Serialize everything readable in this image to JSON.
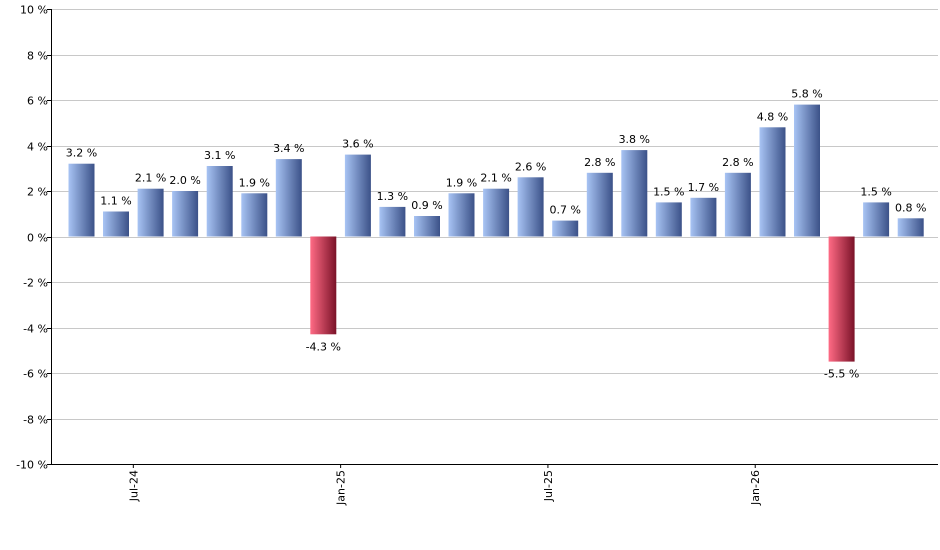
{
  "chart_data": {
    "type": "bar",
    "title": "",
    "xlabel": "",
    "ylabel": "",
    "ylim": [
      -10,
      10
    ],
    "y_ticks": [
      10,
      8,
      6,
      4,
      2,
      0,
      -2,
      -4,
      -6,
      -8,
      -10
    ],
    "y_tick_labels": [
      "10 %",
      "8 %",
      "6 %",
      "4 %",
      "2 %",
      "0 %",
      "-2 %",
      "-4 %",
      "-6 %",
      "-8 %",
      "-10 %"
    ],
    "x_tick_labels": [
      {
        "label": "Jul-24",
        "index": 1.5
      },
      {
        "label": "Jan-25",
        "index": 7.5
      },
      {
        "label": "Jul-25",
        "index": 13.5
      },
      {
        "label": "Jan-26",
        "index": 19.5
      }
    ],
    "grid": true,
    "legend": "none",
    "values": [
      3.2,
      1.1,
      2.1,
      2.0,
      3.1,
      1.9,
      3.4,
      -4.3,
      3.6,
      1.3,
      0.9,
      1.9,
      2.1,
      2.6,
      0.7,
      2.8,
      3.8,
      1.5,
      1.7,
      2.8,
      4.8,
      5.8,
      -5.5,
      1.5,
      0.8
    ],
    "data_labels": [
      "3.2 %",
      "1.1 %",
      "2.1 %",
      "2.0 %",
      "3.1 %",
      "1.9 %",
      "3.4 %",
      "-4.3 %",
      "3.6 %",
      "1.3 %",
      "0.9 %",
      "1.9 %",
      "2.1 %",
      "2.6 %",
      "0.7 %",
      "2.8 %",
      "3.8 %",
      "1.5 %",
      "1.7 %",
      "2.8 %",
      "4.8 %",
      "5.8 %",
      "-5.5 %",
      "1.5 %",
      "0.8 %"
    ],
    "colors": {
      "positive_light": "#a8c4f4",
      "positive_dark": "#3b5188",
      "negative_light": "#ff6b85",
      "negative_dark": "#7a1228",
      "grid": "#c8c8c8",
      "axis": "#000000"
    }
  }
}
